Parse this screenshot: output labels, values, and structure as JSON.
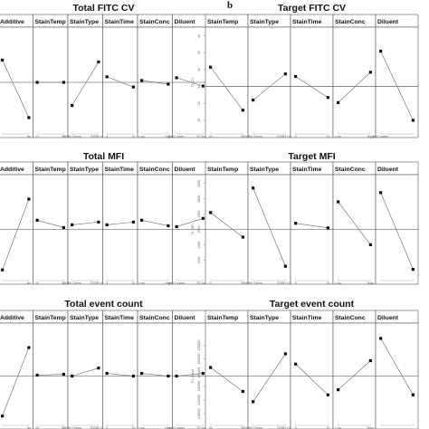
{
  "panel_label": "b",
  "chart_data": [
    {
      "type": "line",
      "title": "Total FITC CV",
      "ylabel": "",
      "ylim": [
        0,
        10
      ],
      "mean": 5.0,
      "ticks": [],
      "factors": [
        {
          "name": "Additive",
          "levels": [
            "",
            "No"
          ],
          "values": [
            7.4,
            1.2
          ]
        },
        {
          "name": "StainTemp",
          "levels": [
            "21",
            "50"
          ],
          "values": [
            5.0,
            5.0
          ]
        },
        {
          "name": "StainType",
          "levels": [
            "SYBR Green",
            "SYBR Gold"
          ],
          "values": [
            2.5,
            7.2
          ]
        },
        {
          "name": "StainTime",
          "levels": [
            "5",
            "15"
          ],
          "values": [
            5.6,
            4.5
          ]
        },
        {
          "name": "StainConc",
          "levels": [
            "Low",
            "High"
          ],
          "values": [
            5.2,
            4.8
          ]
        },
        {
          "name": "Diluent",
          "levels": [
            "NaCl water",
            "TE buffer"
          ],
          "values": [
            5.5,
            4.6
          ]
        }
      ]
    },
    {
      "type": "line",
      "title": "Total MFI",
      "ylabel": "",
      "ylim": [
        0,
        10
      ],
      "mean": 5.0,
      "ticks": [],
      "factors": [
        {
          "name": "Additive",
          "levels": [
            "",
            "No"
          ],
          "values": [
            0.6,
            8.3
          ]
        },
        {
          "name": "StainTemp",
          "levels": [
            "20",
            "50"
          ],
          "values": [
            6.0,
            5.2
          ]
        },
        {
          "name": "StainType",
          "levels": [
            "SYBR Green",
            "SYBR Gold"
          ],
          "values": [
            5.5,
            5.8
          ]
        },
        {
          "name": "StainTime",
          "levels": [
            "5",
            "15"
          ],
          "values": [
            5.5,
            5.8
          ]
        },
        {
          "name": "StainConc",
          "levels": [
            "Low",
            "High"
          ],
          "values": [
            6.0,
            5.4
          ]
        },
        {
          "name": "Diluent",
          "levels": [
            "NaCl water",
            "TE buffer"
          ],
          "values": [
            5.3,
            6.2
          ]
        }
      ]
    },
    {
      "type": "line",
      "title": "Total event count",
      "ylabel": "",
      "ylim": [
        0,
        10
      ],
      "mean": 5.0,
      "ticks": [],
      "factors": [
        {
          "name": "Additive",
          "levels": [
            "",
            "No"
          ],
          "values": [
            0.5,
            8.2
          ]
        },
        {
          "name": "StainTemp",
          "levels": [
            "20",
            "50"
          ],
          "values": [
            5.1,
            5.2
          ]
        },
        {
          "name": "StainType",
          "levels": [
            "SYBR Green",
            "SYBR Gold"
          ],
          "values": [
            5.0,
            5.9
          ]
        },
        {
          "name": "StainTime",
          "levels": [
            "5",
            "15"
          ],
          "values": [
            5.3,
            5.0
          ]
        },
        {
          "name": "StainConc",
          "levels": [
            "Low",
            "High"
          ],
          "values": [
            5.3,
            5.0
          ]
        },
        {
          "name": "Diluent",
          "levels": [
            "NaCl water",
            "TE buffer"
          ],
          "values": [
            5.0,
            5.3
          ]
        }
      ]
    },
    {
      "type": "line",
      "title": "Target FITC CV",
      "ylabel": "T4_CV",
      "ylim": [
        29,
        40
      ],
      "mean": 34,
      "ticks": [
        "30",
        "32",
        "34",
        "36",
        "38",
        "40"
      ],
      "factors": [
        {
          "name": "StainTemp",
          "levels": [
            "20",
            "50"
          ],
          "values": [
            36.3,
            31.2
          ]
        },
        {
          "name": "StainType",
          "levels": [
            "SYBR Green",
            "SYBR Gold"
          ],
          "values": [
            32.4,
            35.5
          ]
        },
        {
          "name": "StainTime",
          "levels": [
            "5",
            "15"
          ],
          "values": [
            35.2,
            32.7
          ]
        },
        {
          "name": "StainConc",
          "levels": [
            "Low",
            "High"
          ],
          "values": [
            32.1,
            35.7
          ]
        },
        {
          "name": "Diluent",
          "levels": [
            "NaCl water",
            ""
          ],
          "values": [
            38.2,
            30.0
          ]
        }
      ]
    },
    {
      "type": "line",
      "title": "Target MFI",
      "ylabel": "T4_MFI",
      "ylim": [
        2350,
        2650
      ],
      "mean": 2500,
      "ticks": [
        "2400",
        "2450",
        "2500",
        "2550",
        "2600",
        "2650"
      ],
      "factors": [
        {
          "name": "StainTemp",
          "levels": [
            "21",
            "50"
          ],
          "values": [
            2555,
            2475
          ]
        },
        {
          "name": "StainType",
          "levels": [
            "SYBR Green",
            "SYBR Gold"
          ],
          "values": [
            2635,
            2380
          ]
        },
        {
          "name": "StainTime",
          "levels": [
            "5",
            "15"
          ],
          "values": [
            2520,
            2505
          ]
        },
        {
          "name": "StainConc",
          "levels": [
            "Low",
            "High"
          ],
          "values": [
            2590,
            2450
          ]
        },
        {
          "name": "Diluent",
          "levels": [
            "",
            ""
          ],
          "values": [
            2620,
            2370
          ]
        }
      ]
    },
    {
      "type": "line",
      "title": "Target event count",
      "ylabel": "T4_Count",
      "ylim": [
        136000,
        162000
      ],
      "mean": 149000,
      "ticks": [
        "138000",
        "142000",
        "146000",
        "150000",
        "154000",
        "158000"
      ],
      "factors": [
        {
          "name": "StainTemp",
          "levels": [
            "20",
            "50"
          ],
          "values": [
            151500,
            144500
          ]
        },
        {
          "name": "StainType",
          "levels": [
            "SYBR Green",
            "SYBR Gold"
          ],
          "values": [
            141500,
            155500
          ]
        },
        {
          "name": "StainTime",
          "levels": [
            "5",
            "15"
          ],
          "values": [
            152500,
            143500
          ]
        },
        {
          "name": "StainConc",
          "levels": [
            "Low",
            "High"
          ],
          "values": [
            145000,
            153500
          ]
        },
        {
          "name": "Diluent",
          "levels": [
            "",
            ""
          ],
          "values": [
            160000,
            143500
          ]
        }
      ]
    }
  ]
}
